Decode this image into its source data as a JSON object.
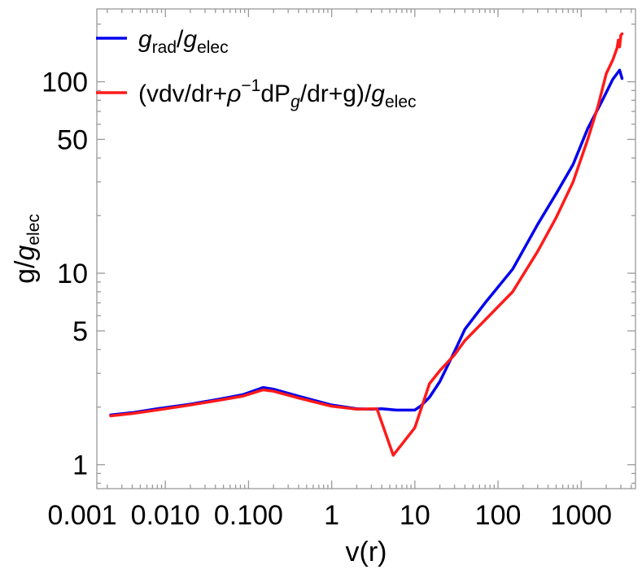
{
  "chart_data": {
    "type": "line",
    "xscale": "log",
    "yscale": "log",
    "xlabel": "v(r)",
    "ylabel_parts": {
      "base": "g/",
      "g": "g",
      "sub": "elec"
    },
    "xlim": [
      0.0015,
      4500
    ],
    "ylim": [
      0.75,
      240
    ],
    "x_ticks": [
      {
        "value": 0.001,
        "label": "0.001"
      },
      {
        "value": 0.01,
        "label": "0.010"
      },
      {
        "value": 0.1,
        "label": "0.100"
      },
      {
        "value": 1,
        "label": "1"
      },
      {
        "value": 10,
        "label": "10"
      },
      {
        "value": 100,
        "label": "100"
      },
      {
        "value": 1000,
        "label": "1000"
      }
    ],
    "y_ticks": [
      {
        "value": 1,
        "label": "1"
      },
      {
        "value": 5,
        "label": "5"
      },
      {
        "value": 10,
        "label": "10"
      },
      {
        "value": 50,
        "label": "50"
      },
      {
        "value": 100,
        "label": "100"
      }
    ],
    "legend_position": "top-left",
    "legend": [
      {
        "color": "#0000ee",
        "parts": {
          "g1": "g",
          "sub1": "rad",
          "slash": "/",
          "g2": "g",
          "sub2": "elec"
        }
      },
      {
        "color": "#ff1a1a",
        "parts": {
          "open": "(vdv/dr+",
          "rho": "ρ",
          "sup": "−1",
          "mid": "dP",
          "sub_g": "g",
          "rest": "/dr+g)/",
          "g": "g",
          "sub": "elec"
        }
      }
    ],
    "series": [
      {
        "color": "#0000ee",
        "points": [
          [
            0.0022,
            1.82
          ],
          [
            0.004,
            1.87
          ],
          [
            0.008,
            1.96
          ],
          [
            0.02,
            2.07
          ],
          [
            0.05,
            2.22
          ],
          [
            0.085,
            2.32
          ],
          [
            0.15,
            2.53
          ],
          [
            0.2,
            2.48
          ],
          [
            0.4,
            2.28
          ],
          [
            1,
            2.05
          ],
          [
            2,
            1.96
          ],
          [
            3,
            1.95
          ],
          [
            4,
            1.96
          ],
          [
            6,
            1.93
          ],
          [
            10,
            1.93
          ],
          [
            12,
            2.04
          ],
          [
            15,
            2.25
          ],
          [
            20,
            2.72
          ],
          [
            30,
            3.9
          ],
          [
            40,
            5.1
          ],
          [
            70,
            7.0
          ],
          [
            150,
            10.5
          ],
          [
            300,
            18.0
          ],
          [
            500,
            26.0
          ],
          [
            800,
            37.0
          ],
          [
            1200,
            57.0
          ],
          [
            1800,
            80.0
          ],
          [
            2400,
            103.0
          ],
          [
            2900,
            115.0
          ],
          [
            3100,
            104.0
          ]
        ]
      },
      {
        "color": "#ff1a1a",
        "points": [
          [
            0.0022,
            1.8
          ],
          [
            0.004,
            1.85
          ],
          [
            0.008,
            1.93
          ],
          [
            0.02,
            2.05
          ],
          [
            0.05,
            2.19
          ],
          [
            0.085,
            2.28
          ],
          [
            0.15,
            2.46
          ],
          [
            0.2,
            2.42
          ],
          [
            0.4,
            2.23
          ],
          [
            1,
            2.02
          ],
          [
            2,
            1.95
          ],
          [
            3.5,
            1.96
          ],
          [
            5.5,
            1.12
          ],
          [
            10,
            1.56
          ],
          [
            15,
            2.65
          ],
          [
            20,
            3.1
          ],
          [
            30,
            3.75
          ],
          [
            40,
            4.45
          ],
          [
            70,
            5.7
          ],
          [
            150,
            8.0
          ],
          [
            300,
            13.0
          ],
          [
            500,
            19.5
          ],
          [
            800,
            30.0
          ],
          [
            1200,
            50.0
          ],
          [
            1600,
            75.0
          ],
          [
            2000,
            110.0
          ],
          [
            2400,
            130.0
          ],
          [
            2700,
            150.0
          ],
          [
            2800,
            165.0
          ],
          [
            2900,
            152.0
          ],
          [
            3000,
            175.0
          ],
          [
            3100,
            178.0
          ]
        ]
      }
    ]
  }
}
